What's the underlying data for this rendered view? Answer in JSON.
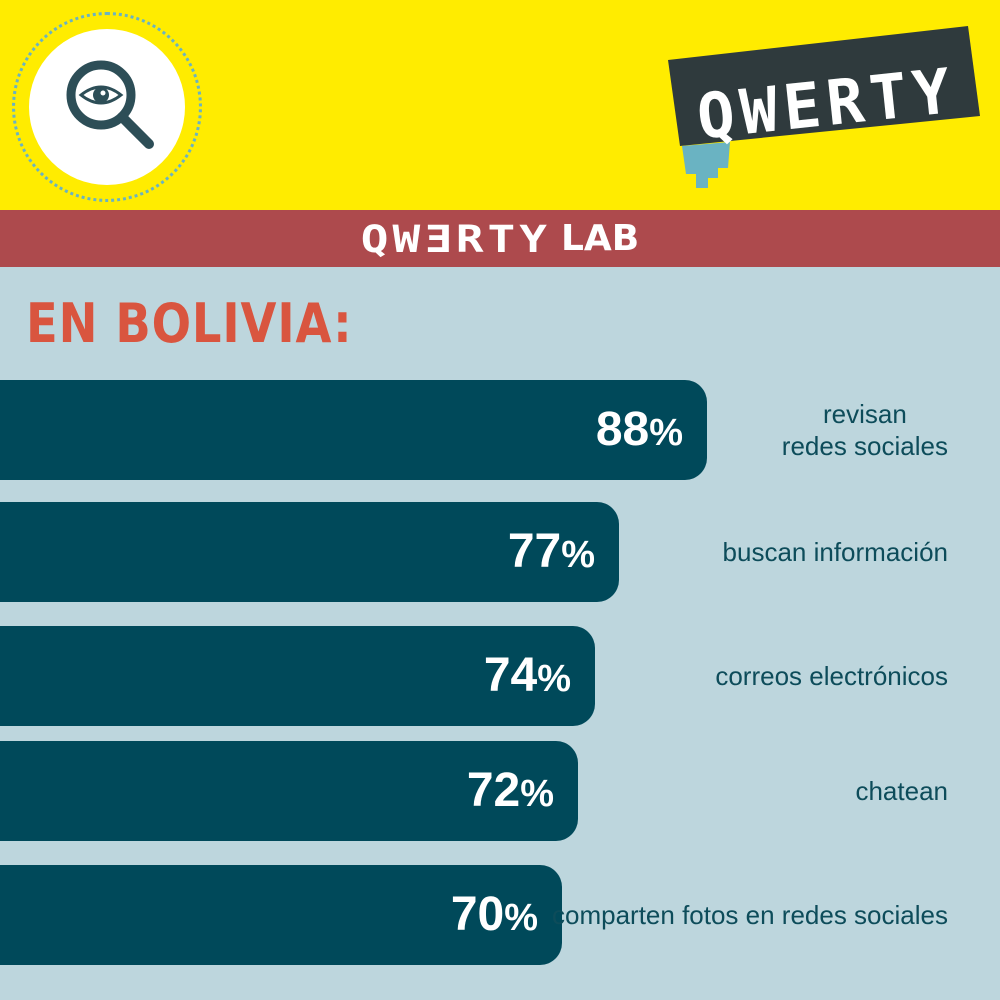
{
  "brand": {
    "logo_text": "QWERTY",
    "lab_logo_text": "QWƎRTY",
    "lab_word": "LAB",
    "colors": {
      "yellow": "#ffec00",
      "band": "#ad4a4d",
      "background": "#bdd6dd",
      "bar": "#00495a",
      "country": "#d9553f",
      "accent": "#6ab3c2"
    }
  },
  "icons": {
    "main": "magnifier-eye-icon"
  },
  "country": "EN BOLIVIA:",
  "chart_data": {
    "type": "bar",
    "orientation": "horizontal",
    "unit": "%",
    "max": 100,
    "categories": [
      "revisan\nredes sociales",
      "buscan información",
      "correos electrónicos",
      "chatean",
      "comparten fotos en redes sociales"
    ],
    "values": [
      88,
      77,
      74,
      72,
      70
    ]
  }
}
